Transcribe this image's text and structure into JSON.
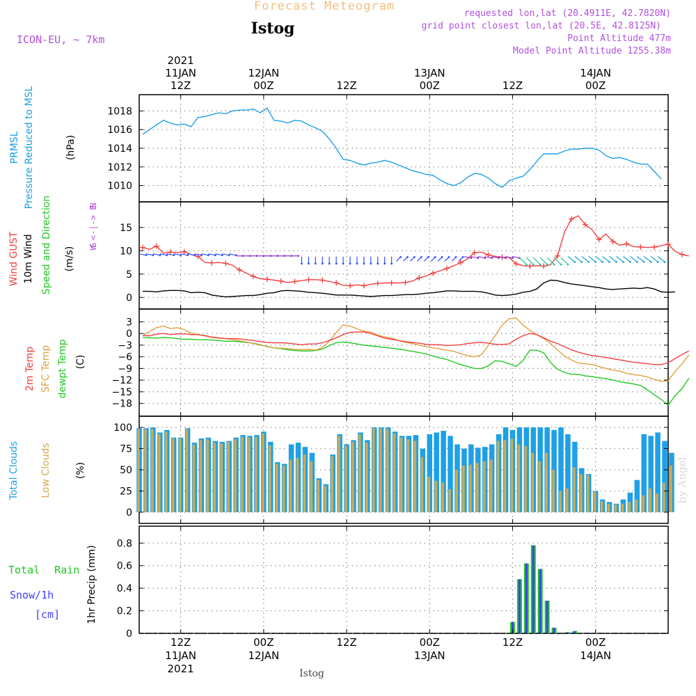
{
  "header": {
    "title": "Forecast Meteogram",
    "station": "Istog",
    "model": "ICON-EU, ~ 7km",
    "requested": "requested lon,lat (20.4911E, 42.7820N)",
    "grid_point": "grid point closest lon,lat (20.5E, 42.8125N)",
    "point_altitude": "Point Altitude 477m",
    "model_altitude": "Model Point Altitude 1255.38m"
  },
  "time_axis": {
    "year": "2021",
    "tick_hours": [
      12,
      24,
      36,
      48,
      60,
      72
    ],
    "tick_times": [
      "12Z",
      "00Z",
      "12Z",
      "00Z",
      "12Z",
      "00Z"
    ],
    "tick_dates": [
      "11JAN",
      "12JAN",
      "",
      "13JAN",
      "",
      "14JAN"
    ],
    "range_hours": [
      6,
      82.5
    ]
  },
  "footer": {
    "station": "Istog"
  },
  "watermark": "by Angel",
  "colors": {
    "pressure": "#1ea0e6",
    "gust": "#f04040",
    "wind": "#000000",
    "temp": "#f04040",
    "sfc_temp": "#e0a040",
    "dewpoint": "#20c820",
    "total_clouds": "#1ea0e6",
    "low_clouds": "#d0aa50",
    "rain": "#20c820",
    "snow": "#4040ff",
    "header_info": "#b050e0",
    "title_orange": "#f0c080"
  },
  "chart_data": [
    {
      "type": "line",
      "panel": "pressure",
      "ylabels": [
        "PRMSL",
        "Pressure Reduced to MSL",
        "(hPa)"
      ],
      "ylim": [
        1009,
        1019
      ],
      "yticks": [
        1010,
        1012,
        1014,
        1016,
        1018
      ],
      "x_hours_start": 6.5,
      "x_step_hours": 1,
      "series": [
        {
          "name": "PRMSL",
          "values": [
            1015.5,
            1016,
            1016.5,
            1017,
            1016.7,
            1016.5,
            1016.6,
            1016.3,
            1017.3,
            1017.4,
            1017.6,
            1017.8,
            1017.7,
            1018,
            1018.1,
            1018.1,
            1018.2,
            1017.8,
            1018.3,
            1017,
            1016.9,
            1016.7,
            1017,
            1016.9,
            1016.5,
            1016.2,
            1015.8,
            1015,
            1014,
            1012.8,
            1012.7,
            1012.4,
            1012.2,
            1012.4,
            1012.5,
            1012.7,
            1012.5,
            1012.2,
            1011.9,
            1011.6,
            1011.4,
            1011.2,
            1011.1,
            1010.6,
            1010.2,
            1010,
            1010.3,
            1010.9,
            1011.3,
            1011.2,
            1010.8,
            1010.2,
            1009.8,
            1010.5,
            1010.8,
            1011,
            1011.7,
            1012.6,
            1013.4,
            1013.4,
            1013.4,
            1013.7,
            1013.9,
            1013.9,
            1014,
            1014,
            1013.8,
            1013.2,
            1012.9,
            1013,
            1012.8,
            1012.5,
            1012.3,
            1012.3,
            1011.5,
            1010.7
          ]
        }
      ]
    },
    {
      "type": "line",
      "panel": "wind",
      "ylabels": [
        "Wind GUST",
        "10m Wind",
        "Speed and Direction",
        "(m/s)"
      ],
      "direction_legend": [
        "N",
        "W <-|-> E",
        "S"
      ],
      "ylim": [
        -1,
        19
      ],
      "yticks": [
        0,
        5,
        10,
        15
      ],
      "x_hours_start": 6.5,
      "x_step_hours": 1,
      "series": [
        {
          "name": "Wind GUST",
          "values": [
            10.7,
            10.3,
            11,
            9.5,
            9.7,
            9.6,
            9.8,
            9.2,
            8.8,
            7.5,
            7.4,
            7.5,
            7.3,
            6.9,
            5.9,
            5.2,
            4.5,
            4,
            3.9,
            3.7,
            3.5,
            3.2,
            3.4,
            3.6,
            3.8,
            3.8,
            3.7,
            3.4,
            3.1,
            2.6,
            2.5,
            2.7,
            2.5,
            2.8,
            3,
            3.1,
            3.1,
            3.1,
            3.2,
            3.5,
            4.2,
            4.6,
            5.2,
            5.7,
            6.2,
            6.8,
            7.5,
            8.3,
            9.6,
            9.7,
            9.1,
            8.8,
            8.6,
            8.6,
            7.2,
            6.8,
            6.7,
            6.8,
            6.7,
            7,
            8.9,
            14,
            16.8,
            17.5,
            15.6,
            14.5,
            12.4,
            13.6,
            12,
            11.2,
            11.5,
            10.9,
            10.8,
            10.7,
            10.8,
            11.1,
            11.4,
            9.9,
            9.2,
            8.9
          ]
        },
        {
          "name": "10m Wind",
          "values": [
            1.3,
            1.3,
            1.2,
            1.4,
            1.5,
            1.5,
            1.4,
            1,
            1.1,
            1,
            0.5,
            0.3,
            0.1,
            0.2,
            0.3,
            0.4,
            0.4,
            0.6,
            0.9,
            1,
            1.4,
            1.5,
            1.4,
            1.3,
            1.1,
            1,
            0.9,
            0.7,
            0.5,
            0.5,
            0.5,
            0.4,
            0.3,
            0.2,
            0.3,
            0.4,
            0.4,
            0.5,
            0.6,
            0.6,
            0.7,
            0.9,
            1,
            1.2,
            1.4,
            1.4,
            1.3,
            1.3,
            1.3,
            1.2,
            0.9,
            0.5,
            0.4,
            0.5,
            0.7,
            1.1,
            1.3,
            1.8,
            3.1,
            3.7,
            3.6,
            3.2,
            2.9,
            2.7,
            2.5,
            2.3,
            2.1,
            1.8,
            1.7,
            1.8,
            1.9,
            2,
            1.9,
            2.1,
            1.8,
            1.2,
            1.1,
            1.2
          ]
        }
      ]
    },
    {
      "type": "line",
      "panel": "temperature",
      "ylabels": [
        "2m Temp",
        "SFC Temp",
        "dewpt Temp",
        "(C)"
      ],
      "ylim": [
        -19.5,
        4.5
      ],
      "yticks": [
        3,
        0,
        -3,
        -6,
        -9,
        -12,
        -15,
        -18
      ],
      "x_hours_start": 6.5,
      "x_step_hours": 1,
      "series": [
        {
          "name": "2m Temp",
          "values": [
            -0.5,
            -0.6,
            -0.2,
            0,
            -0.3,
            -0.1,
            -0.1,
            -0.3,
            -0.3,
            -0.6,
            -1,
            -1.2,
            -1.3,
            -1.3,
            -1.4,
            -1.6,
            -1.8,
            -2.1,
            -2.3,
            -2.4,
            -2.4,
            -2.5,
            -2.7,
            -2.9,
            -2.7,
            -2.7,
            -2.4,
            -1.8,
            -1.1,
            -0.3,
            0.3,
            0.4,
            0.4,
            0,
            -0.6,
            -1.2,
            -1.5,
            -1.8,
            -2.1,
            -2.3,
            -2.5,
            -2.8,
            -2.9,
            -2.9,
            -3.1,
            -3,
            -2.9,
            -2.6,
            -2.4,
            -2.3,
            -2.5,
            -2.8,
            -2.8,
            -2.7,
            -1.5,
            -0.6,
            0,
            -0.3,
            -1.1,
            -2,
            -2.6,
            -3.4,
            -4.2,
            -4.8,
            -5.3,
            -5.7,
            -5.9,
            -6.2,
            -6.5,
            -6.8,
            -7.1,
            -7.4,
            -7.6,
            -7.8,
            -8,
            -8,
            -7.5,
            -6.5,
            -5.4,
            -4.5
          ]
        },
        {
          "name": "SFC Temp",
          "values": [
            -0.5,
            0.5,
            1.5,
            1.9,
            1.3,
            1.5,
            1,
            0.1,
            -0.3,
            -0.5,
            -0.9,
            -1.1,
            -1.3,
            -1.6,
            -1.9,
            -2.2,
            -2.6,
            -3,
            -3.3,
            -3.7,
            -3.8,
            -3.9,
            -4.1,
            -4.2,
            -4.1,
            -4.3,
            -3.6,
            -2,
            0.2,
            2.2,
            1.9,
            1.2,
            0.6,
            0.4,
            -0.4,
            -0.9,
            -1.2,
            -1.8,
            -2.3,
            -2.6,
            -3,
            -3.4,
            -3.7,
            -4,
            -4.3,
            -4.6,
            -5.2,
            -5.7,
            -6,
            -5.5,
            -3,
            -0.5,
            2.2,
            3.8,
            4,
            2.2,
            0.8,
            -0.3,
            -1.3,
            -2.6,
            -4.2,
            -5.8,
            -6.8,
            -7.6,
            -7.8,
            -8,
            -8.5,
            -9,
            -9.4,
            -9.7,
            -10.3,
            -10.6,
            -10.8,
            -11.2,
            -11.8,
            -12.3,
            -12.2,
            -9.8,
            -7.8,
            -5.5
          ]
        },
        {
          "name": "dewpt Temp",
          "values": [
            -1,
            -1.1,
            -1.2,
            -1,
            -1.1,
            -1.3,
            -1.5,
            -1.5,
            -1.6,
            -1.6,
            -1.7,
            -1.8,
            -2,
            -2,
            -2.1,
            -2.3,
            -2.5,
            -2.9,
            -3.4,
            -3.7,
            -3.9,
            -4.2,
            -4.4,
            -4.5,
            -4.5,
            -4.4,
            -4,
            -3.1,
            -2.4,
            -2.2,
            -2.4,
            -2.7,
            -3,
            -3.2,
            -3.4,
            -3.6,
            -3.8,
            -4,
            -4.3,
            -4.6,
            -4.9,
            -5.3,
            -5.8,
            -6.3,
            -6.7,
            -7.4,
            -8,
            -8.5,
            -9,
            -9,
            -8.3,
            -7,
            -7.2,
            -7.8,
            -8.5,
            -7,
            -4.3,
            -4.3,
            -5,
            -7.5,
            -9.2,
            -10,
            -10.5,
            -10.5,
            -10.9,
            -11.1,
            -11.4,
            -11.6,
            -12,
            -12.4,
            -12.7,
            -13,
            -13.4,
            -14.5,
            -15.8,
            -17,
            -18.5,
            -16,
            -14.2,
            -11.5
          ]
        }
      ]
    },
    {
      "type": "bar",
      "panel": "clouds",
      "ylabels": [
        "Total Clouds",
        "Low Clouds",
        "(%)"
      ],
      "ylim": [
        -5,
        105
      ],
      "yticks": [
        0,
        25,
        50,
        75,
        100
      ],
      "x_hours_start": 6,
      "x_step_hours": 1,
      "series": [
        {
          "name": "Total Clouds",
          "values": [
            99,
            99,
            100,
            94,
            97,
            88,
            88,
            99,
            82,
            87,
            88,
            84,
            83,
            84,
            88,
            91,
            90,
            91,
            95,
            83,
            59,
            57,
            80,
            82,
            77,
            70,
            40,
            33,
            68,
            92,
            80,
            85,
            94,
            85,
            100,
            100,
            100,
            95,
            90,
            90,
            91,
            75,
            92,
            94,
            96,
            90,
            80,
            75,
            80,
            76,
            77,
            80,
            92,
            100,
            97,
            100,
            100,
            100,
            100,
            100,
            97,
            100,
            92,
            83,
            52,
            45,
            25,
            15,
            12,
            10,
            15,
            23,
            38,
            92,
            90,
            94,
            84,
            70
          ]
        },
        {
          "name": "Low Clouds",
          "values": [
            98,
            98,
            98,
            92,
            95,
            87,
            87,
            98,
            80,
            85,
            86,
            82,
            81,
            83,
            86,
            89,
            88,
            89,
            93,
            79,
            57,
            55,
            62,
            64,
            68,
            60,
            38,
            31,
            66,
            90,
            78,
            83,
            92,
            82,
            99,
            99,
            98,
            93,
            88,
            86,
            84,
            65,
            42,
            37,
            35,
            27,
            50,
            55,
            56,
            58,
            60,
            62,
            84,
            85,
            87,
            80,
            78,
            70,
            60,
            70,
            50,
            25,
            28,
            53,
            45,
            44,
            24,
            13,
            10,
            9,
            10,
            12,
            15,
            20,
            28,
            22,
            35,
            55
          ]
        }
      ]
    },
    {
      "type": "bar",
      "panel": "precipitation",
      "ylabels": [
        "Total Rain",
        "Snow/1h",
        "[cm]",
        "1hr Precip (mm)"
      ],
      "ylim": [
        0,
        0.95
      ],
      "yticks": [
        0,
        0.2,
        0.4,
        0.6,
        0.8
      ],
      "x": [
        60,
        61,
        62,
        63,
        64,
        65,
        66,
        68,
        69
      ],
      "series": [
        {
          "name": "Total Rain",
          "values": [
            0.1,
            0.48,
            0.62,
            0.78,
            0.57,
            0.29,
            0.05,
            0.01,
            0.02
          ]
        },
        {
          "name": "Snow/1h",
          "values": [
            0.1,
            0.48,
            0.62,
            0.78,
            0.57,
            0.29,
            0.05,
            0.01,
            0.02
          ]
        }
      ]
    }
  ]
}
